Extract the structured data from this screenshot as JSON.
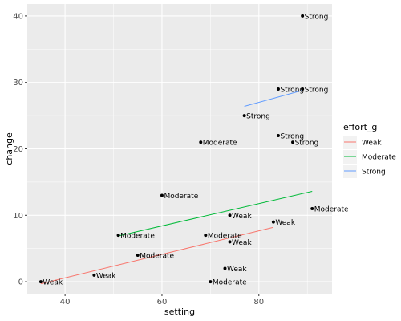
{
  "chart_data": {
    "type": "scatter",
    "title": "",
    "xlabel": "setting",
    "ylabel": "change",
    "xlim": [
      32.2,
      95.1
    ],
    "ylim": [
      -1.8,
      41.8
    ],
    "x_ticks": [
      40,
      60,
      80
    ],
    "y_ticks": [
      0,
      10,
      20,
      30,
      40
    ],
    "grid": true,
    "legend_position": "right",
    "legend_title": "effort_g",
    "groups": [
      {
        "name": "Weak",
        "color": "#F8766D"
      },
      {
        "name": "Moderate",
        "color": "#00BA38"
      },
      {
        "name": "Strong",
        "color": "#619CFF"
      }
    ],
    "points": [
      {
        "x": 35,
        "y": 0,
        "label": "Weak"
      },
      {
        "x": 46,
        "y": 1,
        "label": "Weak"
      },
      {
        "x": 51,
        "y": 7,
        "label": "Moderate"
      },
      {
        "x": 55,
        "y": 4,
        "label": "Moderate"
      },
      {
        "x": 60,
        "y": 13,
        "label": "Moderate"
      },
      {
        "x": 68,
        "y": 21,
        "label": "Moderate"
      },
      {
        "x": 69,
        "y": 7,
        "label": "Moderate"
      },
      {
        "x": 70,
        "y": 0,
        "label": "Moderate"
      },
      {
        "x": 73,
        "y": 2,
        "label": "Weak"
      },
      {
        "x": 74,
        "y": 6,
        "label": "Weak"
      },
      {
        "x": 74,
        "y": 10,
        "label": "Weak"
      },
      {
        "x": 77,
        "y": 25,
        "label": "Strong"
      },
      {
        "x": 83,
        "y": 9,
        "label": "Weak"
      },
      {
        "x": 84,
        "y": 22,
        "label": "Strong"
      },
      {
        "x": 84,
        "y": 29,
        "label": "Strong"
      },
      {
        "x": 87,
        "y": 21,
        "label": "Strong"
      },
      {
        "x": 89,
        "y": 40,
        "label": "Strong"
      },
      {
        "x": 89,
        "y": 29,
        "label": "Strong"
      },
      {
        "x": 91,
        "y": 11,
        "label": "Moderate"
      }
    ],
    "fit_lines": [
      {
        "group": "Weak",
        "x": [
          35,
          83
        ],
        "y": [
          -0.3,
          8.2
        ]
      },
      {
        "group": "Moderate",
        "x": [
          51,
          91
        ],
        "y": [
          6.9,
          13.6
        ]
      },
      {
        "group": "Strong",
        "x": [
          77,
          89
        ],
        "y": [
          26.4,
          28.8
        ]
      }
    ]
  }
}
